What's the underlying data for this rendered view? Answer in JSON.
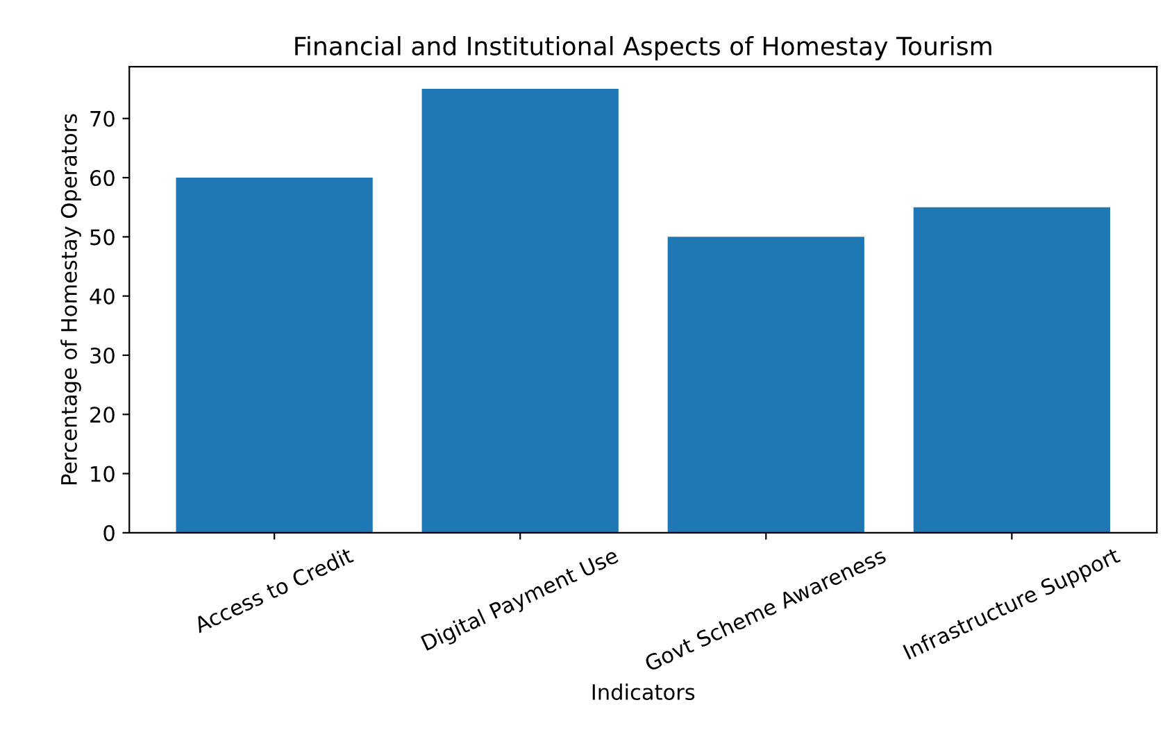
{
  "chart_data": {
    "type": "bar",
    "title": "Financial and Institutional Aspects of Homestay Tourism",
    "xlabel": "Indicators",
    "ylabel": "Percentage of Homestay Operators",
    "categories": [
      "Access to Credit",
      "Digital Payment Use",
      "Govt Scheme Awareness",
      "Infrastructure Support"
    ],
    "values": [
      60,
      75,
      50,
      55
    ],
    "color": "#1f77b4",
    "ylim": [
      0,
      78.75
    ],
    "yticks": [
      0,
      10,
      20,
      30,
      40,
      50,
      60,
      70
    ],
    "grid": false,
    "legend": false
  }
}
